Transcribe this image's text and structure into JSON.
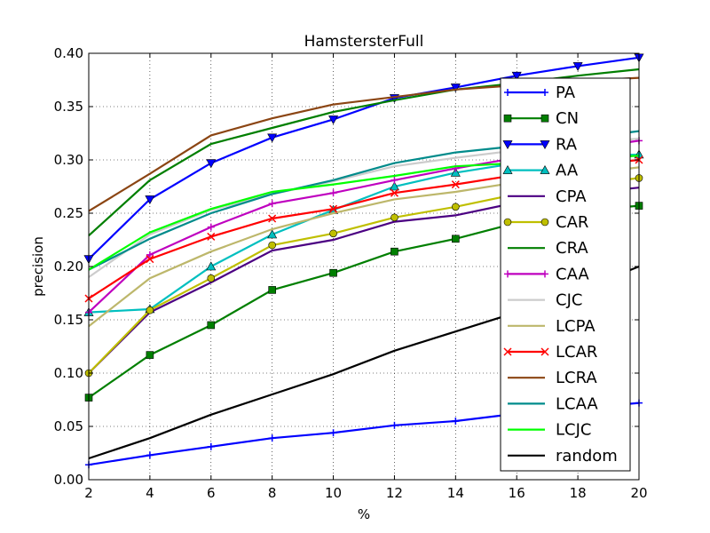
{
  "chart_data": {
    "type": "line",
    "title": "HamstersterFull",
    "xlabel": "%",
    "ylabel": "precision",
    "xlim": [
      2,
      20
    ],
    "ylim": [
      0.0,
      0.4
    ],
    "x": [
      2,
      4,
      6,
      8,
      10,
      12,
      14,
      16,
      18,
      20
    ],
    "xticks": [
      "2",
      "4",
      "6",
      "8",
      "10",
      "12",
      "14",
      "16",
      "18",
      "20"
    ],
    "yticks": [
      "0.00",
      "0.05",
      "0.10",
      "0.15",
      "0.20",
      "0.25",
      "0.30",
      "0.35",
      "0.40"
    ],
    "grid": true,
    "legend_position": "right",
    "series": [
      {
        "name": "PA",
        "color": "#0000ff",
        "marker": "plus",
        "values": [
          0.014,
          0.023,
          0.031,
          0.039,
          0.044,
          0.051,
          0.055,
          0.062,
          0.067,
          0.072
        ]
      },
      {
        "name": "CN",
        "color": "#007f00",
        "marker": "square",
        "values": [
          0.077,
          0.117,
          0.145,
          0.178,
          0.194,
          0.214,
          0.226,
          0.241,
          0.252,
          0.257
        ]
      },
      {
        "name": "RA",
        "color": "#0000ff",
        "marker": "triangle-down",
        "values": [
          0.207,
          0.263,
          0.297,
          0.321,
          0.338,
          0.358,
          0.368,
          0.379,
          0.388,
          0.396
        ]
      },
      {
        "name": "AA",
        "color": "#00bfbf",
        "marker": "triangle-up",
        "values": [
          0.157,
          0.16,
          0.2,
          0.23,
          0.253,
          0.275,
          0.288,
          0.297,
          0.303,
          0.305
        ]
      },
      {
        "name": "CPA",
        "color": "#4b0082",
        "marker": "none",
        "values": [
          0.1,
          0.157,
          0.185,
          0.215,
          0.225,
          0.242,
          0.248,
          0.26,
          0.268,
          0.274
        ]
      },
      {
        "name": "CAR",
        "color": "#bfbf00",
        "marker": "circle",
        "values": [
          0.1,
          0.159,
          0.189,
          0.22,
          0.231,
          0.246,
          0.256,
          0.268,
          0.276,
          0.283
        ]
      },
      {
        "name": "CRA",
        "color": "#007f00",
        "marker": "none",
        "values": [
          0.229,
          0.281,
          0.315,
          0.33,
          0.345,
          0.356,
          0.366,
          0.372,
          0.379,
          0.385
        ]
      },
      {
        "name": "CAA",
        "color": "#bf00bf",
        "marker": "plus",
        "values": [
          0.157,
          0.211,
          0.237,
          0.259,
          0.269,
          0.281,
          0.292,
          0.302,
          0.31,
          0.318
        ]
      },
      {
        "name": "CJC",
        "color": "#cccccc",
        "marker": "none",
        "values": [
          0.19,
          0.23,
          0.253,
          0.268,
          0.28,
          0.294,
          0.302,
          0.309,
          0.315,
          0.32
        ]
      },
      {
        "name": "LCPA",
        "color": "#bdb76b",
        "marker": "none",
        "values": [
          0.144,
          0.189,
          0.214,
          0.235,
          0.25,
          0.263,
          0.27,
          0.279,
          0.286,
          0.293
        ]
      },
      {
        "name": "LCAR",
        "color": "#ff0000",
        "marker": "x",
        "values": [
          0.17,
          0.207,
          0.228,
          0.245,
          0.254,
          0.269,
          0.277,
          0.286,
          0.294,
          0.3
        ]
      },
      {
        "name": "LCRA",
        "color": "#8b4513",
        "marker": "none",
        "values": [
          0.252,
          0.287,
          0.323,
          0.339,
          0.352,
          0.359,
          0.366,
          0.37,
          0.374,
          0.377
        ]
      },
      {
        "name": "LCAA",
        "color": "#008b8b",
        "marker": "none",
        "values": [
          0.197,
          0.226,
          0.25,
          0.268,
          0.281,
          0.297,
          0.307,
          0.313,
          0.32,
          0.327
        ]
      },
      {
        "name": "LCJC",
        "color": "#00ff00",
        "marker": "none",
        "values": [
          0.197,
          0.232,
          0.254,
          0.27,
          0.277,
          0.285,
          0.294,
          0.297,
          0.3,
          0.304
        ]
      },
      {
        "name": "random",
        "color": "#000000",
        "marker": "none",
        "values": [
          0.02,
          0.039,
          0.061,
          0.08,
          0.099,
          0.121,
          0.139,
          0.157,
          0.177,
          0.2
        ]
      }
    ]
  }
}
